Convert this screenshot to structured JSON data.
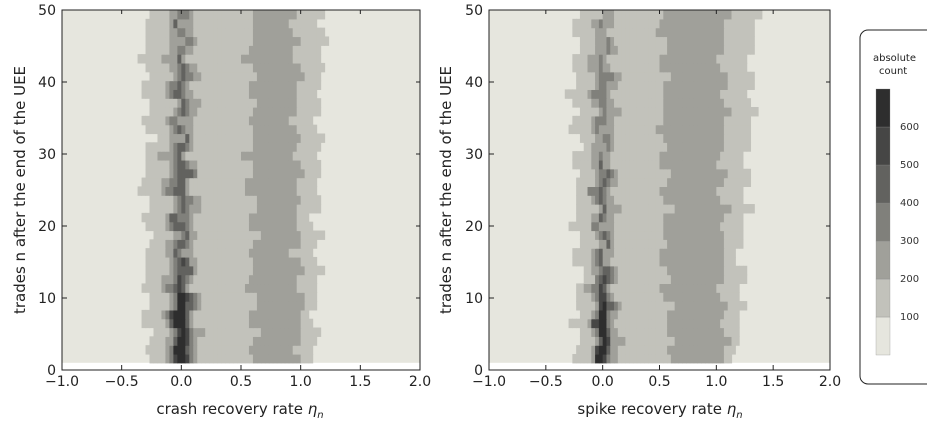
{
  "chart_data": [
    {
      "type": "heatmap",
      "subtype": "contour",
      "xlabel": "crash recovery rate",
      "xlabel_symbol": "η",
      "xlabel_sub": "n",
      "ylabel": "trades n after the end of the UEE",
      "xlim": [
        -1.0,
        2.0
      ],
      "ylim": [
        0,
        50
      ],
      "xticks": [
        "−1.0",
        "−0.5",
        "0.0",
        "0.5",
        "1.0",
        "1.5",
        "2.0"
      ],
      "xtick_values": [
        -1.0,
        -0.5,
        0.0,
        0.5,
        1.0,
        1.5,
        2.0
      ],
      "yticks": [
        "0",
        "10",
        "20",
        "30",
        "40",
        "50"
      ],
      "ytick_values": [
        0,
        10,
        20,
        30,
        40,
        50
      ],
      "data_extent_y": [
        1,
        50
      ],
      "peak": {
        "x": 0.0,
        "y": 2,
        "count": 650
      },
      "contour_profile": {
        "x": [
          -1.0,
          -0.4,
          -0.3,
          -0.2,
          -0.12,
          -0.06,
          0.0,
          0.06,
          0.12,
          0.2,
          0.35,
          0.5,
          0.6,
          0.75,
          0.9,
          1.0,
          1.05,
          1.1,
          1.2,
          1.5,
          1.8,
          2.0
        ],
        "count_bottom": [
          0,
          40,
          90,
          140,
          220,
          380,
          650,
          380,
          210,
          140,
          150,
          150,
          210,
          240,
          240,
          200,
          160,
          110,
          40,
          0,
          0,
          0
        ],
        "count_top": [
          0,
          60,
          100,
          130,
          170,
          260,
          400,
          260,
          170,
          130,
          150,
          170,
          205,
          215,
          210,
          190,
          160,
          120,
          100,
          45,
          0,
          0
        ]
      }
    },
    {
      "type": "heatmap",
      "subtype": "contour",
      "xlabel": "spike recovery rate",
      "xlabel_symbol": "η",
      "xlabel_sub": "n",
      "ylabel": "trades n after the end of the UEE",
      "xlim": [
        -1.0,
        2.0
      ],
      "ylim": [
        0,
        50
      ],
      "xticks": [
        "−1.0",
        "−0.5",
        "0.0",
        "0.5",
        "1.0",
        "1.5",
        "2.0"
      ],
      "xtick_values": [
        -1.0,
        -0.5,
        0.0,
        0.5,
        1.0,
        1.5,
        2.0
      ],
      "yticks": [
        "0",
        "10",
        "20",
        "30",
        "40",
        "50"
      ],
      "ytick_values": [
        0,
        10,
        20,
        30,
        40,
        50
      ],
      "data_extent_y": [
        1,
        50
      ],
      "peak": {
        "x": 0.0,
        "y": 2,
        "count": 650
      },
      "contour_profile": {
        "x": [
          -1.0,
          -0.3,
          -0.2,
          -0.1,
          -0.05,
          0.0,
          0.05,
          0.12,
          0.2,
          0.4,
          0.6,
          0.8,
          1.0,
          1.05,
          1.1,
          1.15,
          1.3,
          1.5,
          2.0
        ],
        "count_bottom": [
          0,
          40,
          100,
          180,
          330,
          650,
          330,
          210,
          160,
          170,
          200,
          220,
          230,
          210,
          170,
          110,
          60,
          20,
          0
        ],
        "count_top": [
          0,
          80,
          130,
          170,
          240,
          330,
          240,
          170,
          150,
          170,
          220,
          230,
          240,
          210,
          170,
          120,
          110,
          50,
          0
        ]
      }
    }
  ],
  "legend": {
    "title_line1": "absolute",
    "title_line2": "count",
    "tick_labels": [
      "100",
      "200",
      "300",
      "400",
      "500",
      "600"
    ],
    "tick_values": [
      100,
      200,
      300,
      400,
      500,
      600
    ],
    "band_edges": [
      0,
      100,
      200,
      300,
      400,
      500,
      600,
      700
    ],
    "band_colors": [
      "#e6e6de",
      "#c2c2bb",
      "#a0a09a",
      "#80807b",
      "#62625f",
      "#464645",
      "#2e2e2e",
      "#151515"
    ]
  }
}
